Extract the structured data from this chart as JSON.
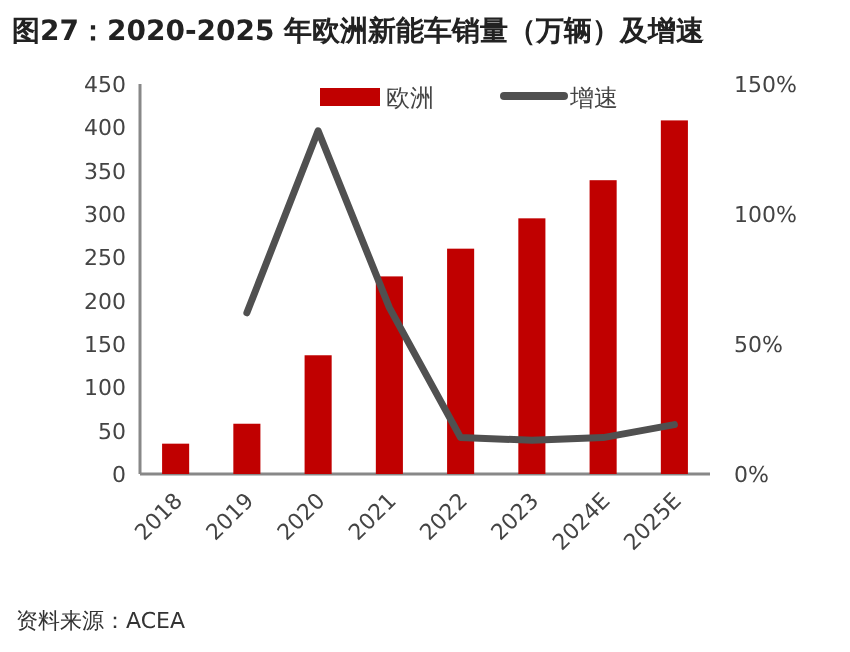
{
  "chart_data": {
    "type": "bar",
    "title": "图27：2020-2025 年欧洲新能车销量（万辆）及增速",
    "categories": [
      "2018",
      "2019",
      "2020",
      "2021",
      "2022",
      "2023",
      "2024E",
      "2025E"
    ],
    "series": [
      {
        "name": "欧洲",
        "color": "#c00000",
        "values": [
          35,
          58,
          137,
          228,
          260,
          295,
          339,
          408
        ]
      },
      {
        "name": "增速",
        "type": "line",
        "axis": "y2",
        "color": "#505050",
        "values": [
          null,
          62,
          132,
          64,
          14,
          13,
          14,
          19
        ]
      }
    ],
    "ylim": [
      0,
      450
    ],
    "yticks": [
      0,
      50,
      100,
      150,
      200,
      250,
      300,
      350,
      400,
      450
    ],
    "y2lim": [
      0,
      150
    ],
    "y2ticks": [
      {
        "value": 0,
        "label": "0%"
      },
      {
        "value": 50,
        "label": "50%"
      },
      {
        "value": 100,
        "label": "100%"
      },
      {
        "value": 150,
        "label": "150%"
      }
    ],
    "legend": "top",
    "grid": false,
    "marker": "none",
    "annotations": [
      "资料来源：ACEA"
    ]
  }
}
